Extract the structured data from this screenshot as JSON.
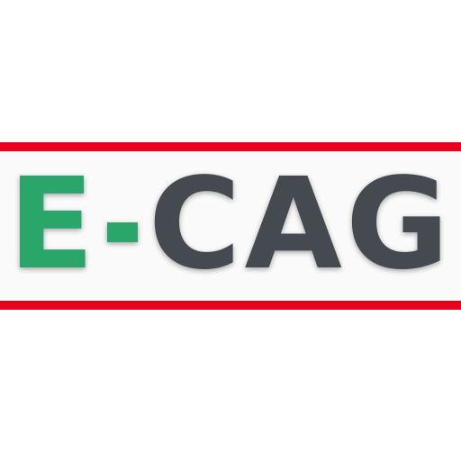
{
  "logo": {
    "first_letter": "E",
    "dash": "-",
    "rest": "CAG"
  },
  "colors": {
    "accent_green": "#2aa66b",
    "text_gray": "#454a50",
    "border_red": "#e8001f",
    "band_background": "#fafafa",
    "page_background": "#ffffff"
  }
}
